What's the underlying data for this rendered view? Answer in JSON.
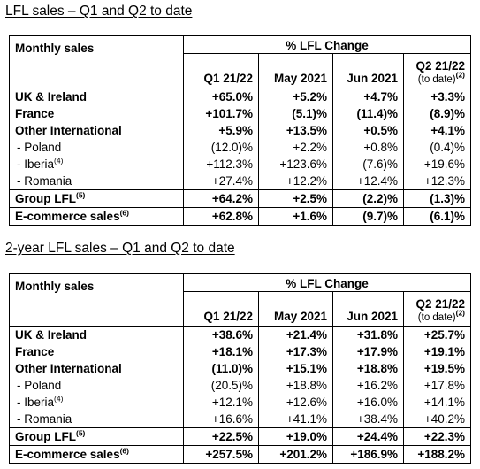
{
  "sections": [
    {
      "title": "LFL sales – Q1 and Q2 to date",
      "header": {
        "group": "% LFL Change",
        "row_label": "Monthly sales",
        "columns": [
          "Q1 21/22",
          "May 2021",
          "Jun 2021",
          "Q2 21/22"
        ],
        "q2_note": "(to date)",
        "q2_note_sup": "(2)"
      },
      "rows": [
        {
          "label": "UK & Ireland",
          "sup": "",
          "values": [
            "+65.0%",
            "+5.2%",
            "+4.7%",
            "+3.3%"
          ]
        },
        {
          "label": "France",
          "sup": "",
          "values": [
            "+101.7%",
            "(5.1)%",
            "(11.4)%",
            "(8.9)%"
          ]
        },
        {
          "label": "Other International",
          "sup": "",
          "values": [
            "+5.9%",
            "+13.5%",
            "+0.5%",
            "+4.1%"
          ]
        },
        {
          "label": "- Poland",
          "sup": "",
          "values": [
            "(12.0)%",
            "+2.2%",
            "+0.8%",
            "(0.4)%"
          ]
        },
        {
          "label": "- Iberia",
          "sup": "(4)",
          "values": [
            "+112.3%",
            "+123.6%",
            "(7.6)%",
            "+19.6%"
          ]
        },
        {
          "label": "- Romania",
          "sup": "",
          "values": [
            "+27.4%",
            "+12.2%",
            "+12.4%",
            "+12.3%"
          ]
        },
        {
          "label": "Group LFL",
          "sup": "(5)",
          "values": [
            "+64.2%",
            "+2.5%",
            "(2.2)%",
            "(1.3)%"
          ]
        },
        {
          "label": "E-commerce sales",
          "sup": "(6)",
          "values": [
            "+62.8%",
            "+1.6%",
            "(9.7)%",
            "(6.1)%"
          ]
        }
      ]
    },
    {
      "title": "2-year LFL sales – Q1 and Q2 to date",
      "header": {
        "group": "% LFL Change",
        "row_label": "Monthly sales",
        "columns": [
          "Q1 21/22",
          "May 2021",
          "Jun 2021",
          "Q2 21/22"
        ],
        "q2_note": "(to date)",
        "q2_note_sup": "(2)"
      },
      "rows": [
        {
          "label": "UK & Ireland",
          "sup": "",
          "values": [
            "+38.6%",
            "+21.4%",
            "+31.8%",
            "+25.7%"
          ]
        },
        {
          "label": "France",
          "sup": "",
          "values": [
            "+18.1%",
            "+17.3%",
            "+17.9%",
            "+19.1%"
          ]
        },
        {
          "label": "Other International",
          "sup": "",
          "values": [
            "(11.0)%",
            "+15.1%",
            "+18.8%",
            "+19.5%"
          ]
        },
        {
          "label": "- Poland",
          "sup": "",
          "values": [
            "(20.5)%",
            "+18.8%",
            "+16.2%",
            "+17.8%"
          ]
        },
        {
          "label": "- Iberia",
          "sup": "(4)",
          "values": [
            "+12.1%",
            "+12.6%",
            "+16.0%",
            "+14.1%"
          ]
        },
        {
          "label": "- Romania",
          "sup": "",
          "values": [
            "+16.6%",
            "+41.1%",
            "+38.4%",
            "+40.2%"
          ]
        },
        {
          "label": "Group LFL",
          "sup": "(5)",
          "values": [
            "+22.5%",
            "+19.0%",
            "+24.4%",
            "+22.3%"
          ]
        },
        {
          "label": "E-commerce sales",
          "sup": "(6)",
          "values": [
            "+257.5%",
            "+201.2%",
            "+186.9%",
            "+188.2%"
          ]
        }
      ]
    }
  ]
}
